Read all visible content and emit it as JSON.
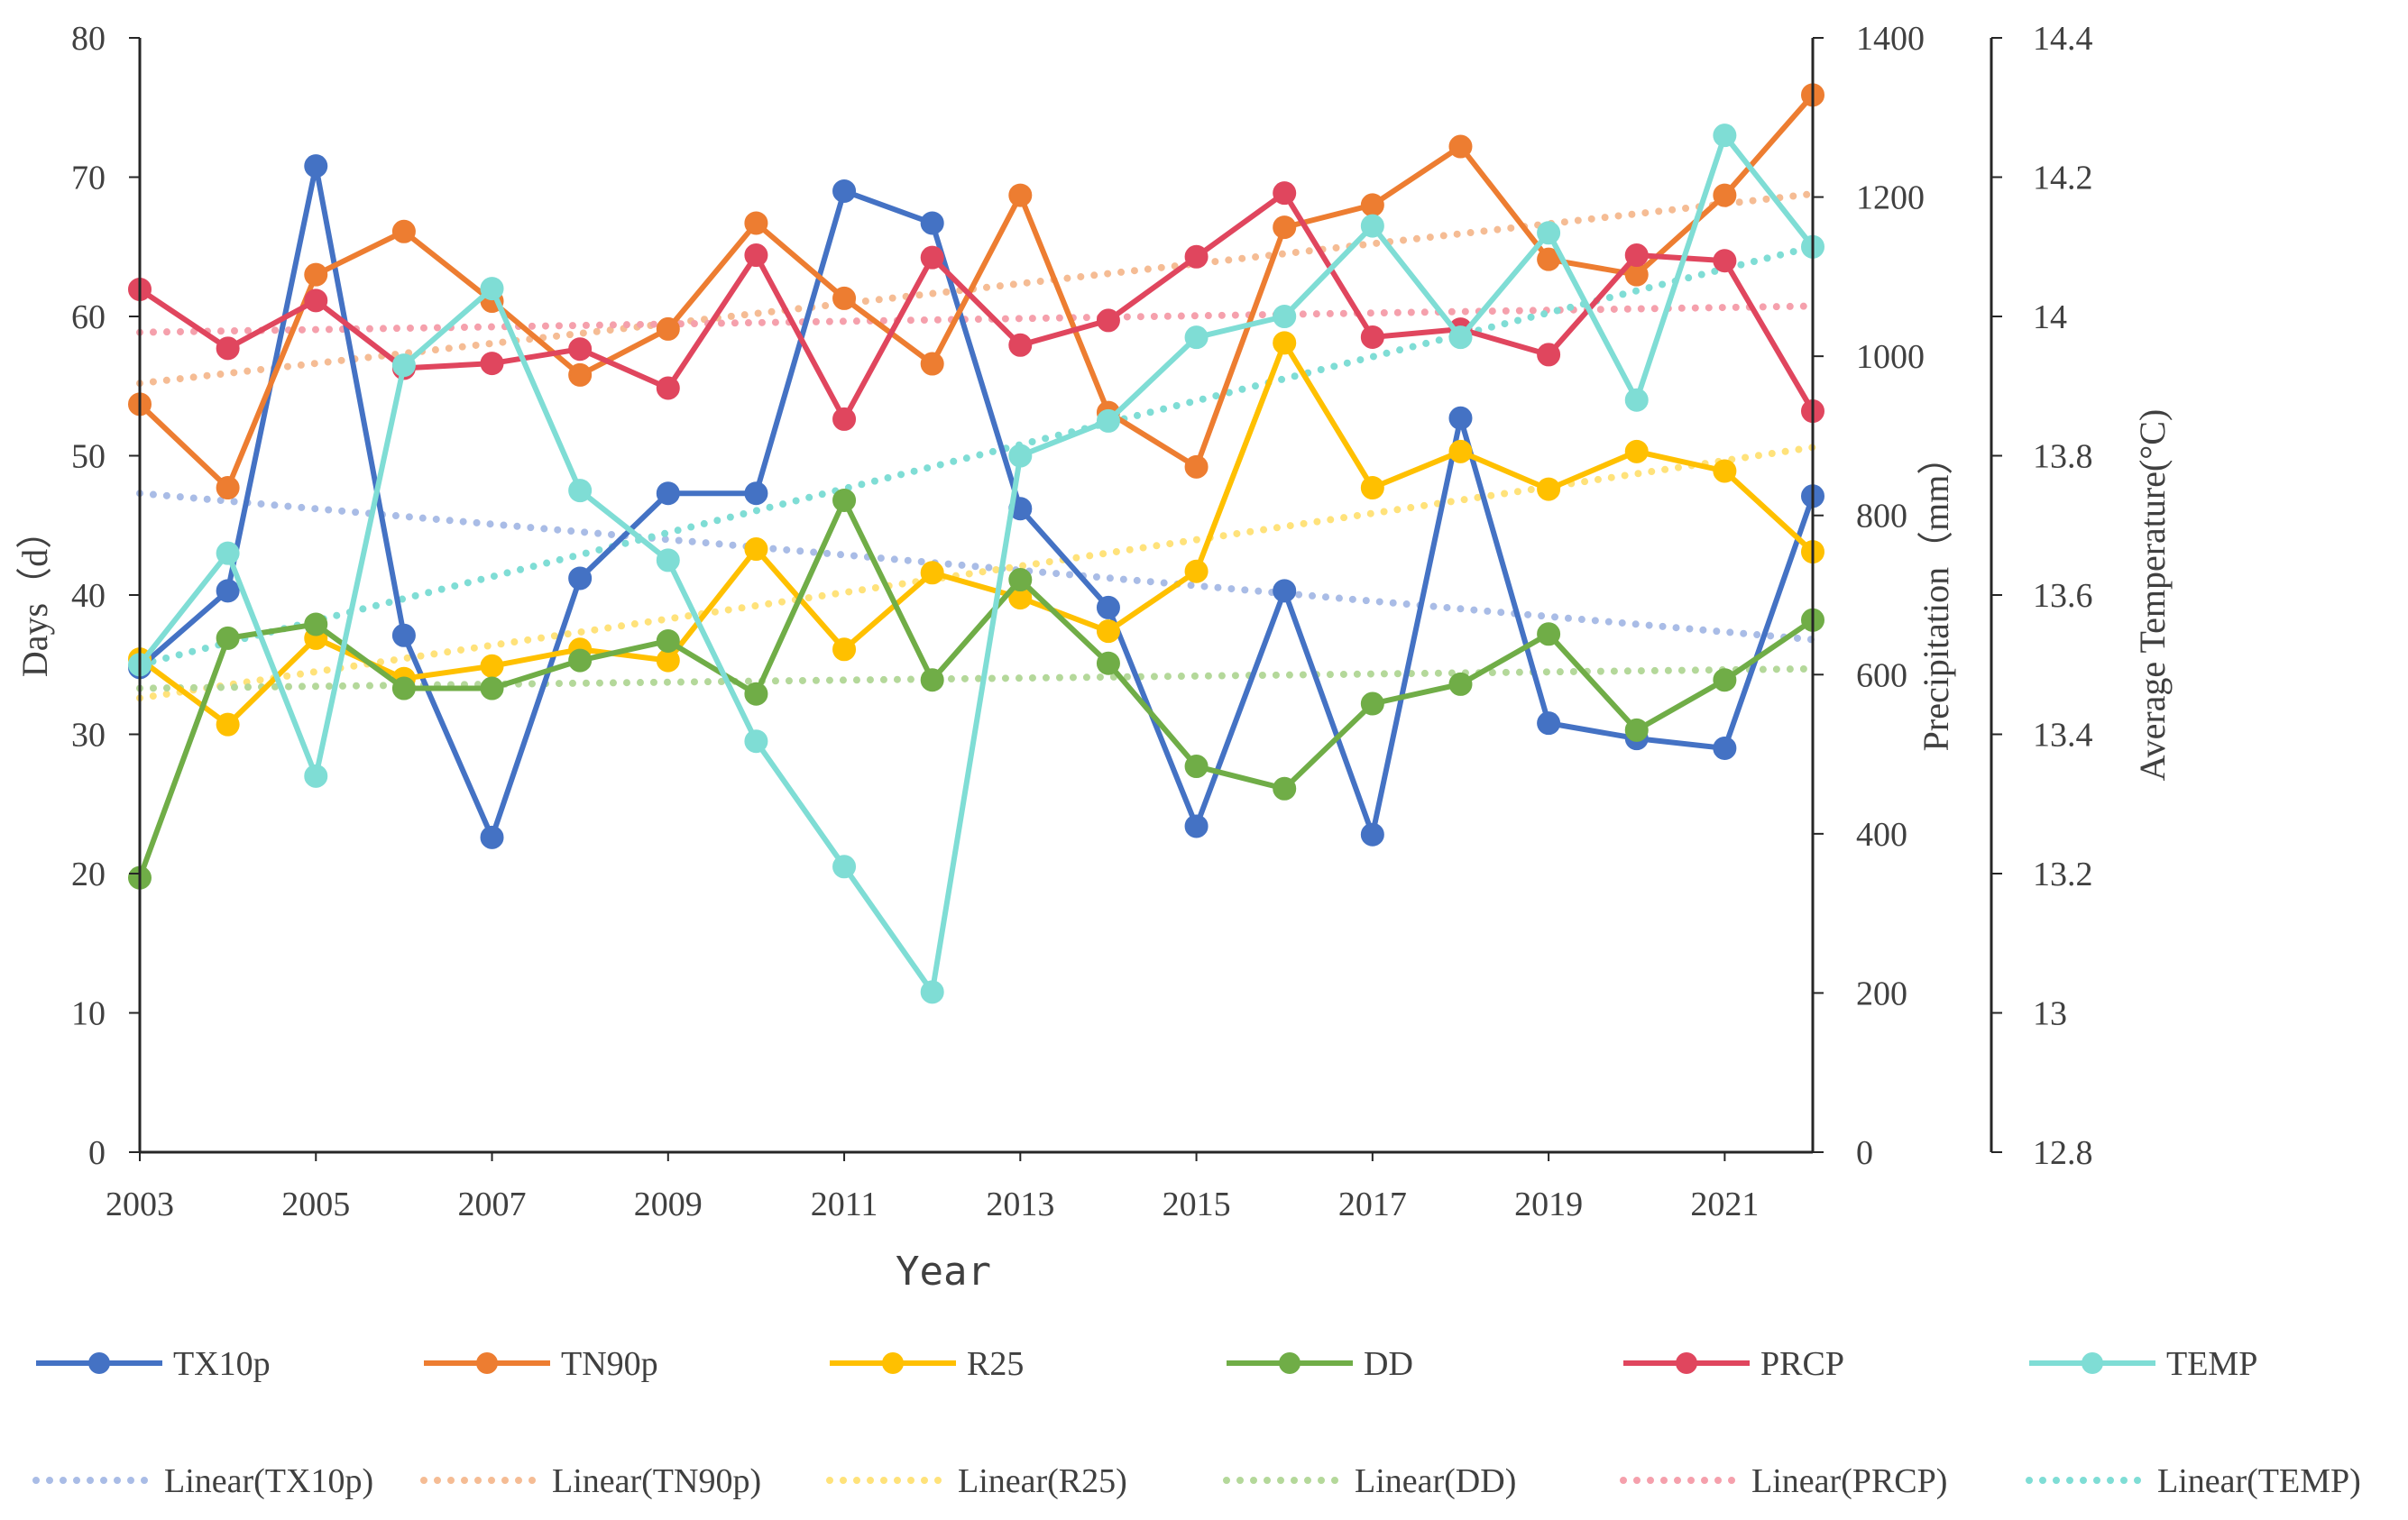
{
  "chart_data": {
    "type": "line",
    "xlabel": "Year",
    "y_axes": [
      {
        "id": "days",
        "label": "Days（d）",
        "range": [
          0,
          80
        ],
        "ticks": [
          "0",
          "10",
          "20",
          "30",
          "40",
          "50",
          "60",
          "70",
          "80"
        ]
      },
      {
        "id": "prcp",
        "label": "Precipitation（mm）",
        "range": [
          0,
          1400
        ],
        "ticks": [
          "0",
          "200",
          "400",
          "600",
          "800",
          "1000",
          "1200",
          "1400"
        ]
      },
      {
        "id": "temp",
        "label": "Average Temperature(°C)",
        "range": [
          12.8,
          14.4
        ],
        "ticks": [
          "12.8",
          "13",
          "13.2",
          "13.4",
          "13.6",
          "13.8",
          "14",
          "14.2",
          "14.4"
        ]
      }
    ],
    "x": [
      2003,
      2004,
      2005,
      2006,
      2007,
      2008,
      2009,
      2010,
      2011,
      2012,
      2013,
      2014,
      2015,
      2016,
      2017,
      2018,
      2019,
      2020,
      2021,
      2022
    ],
    "x_ticks": [
      "2003",
      "2005",
      "2007",
      "2009",
      "2011",
      "2013",
      "2015",
      "2017",
      "2019",
      "2021"
    ],
    "grid": false,
    "legend_position": "bottom",
    "series": [
      {
        "name": "TX10p",
        "axis": "days",
        "color": "#4472C4",
        "values": [
          34.8,
          40.3,
          70.8,
          37.1,
          22.6,
          41.2,
          47.3,
          47.3,
          69.0,
          66.7,
          46.2,
          39.1,
          23.4,
          40.3,
          22.8,
          52.7,
          30.8,
          29.7,
          29.0,
          47.1
        ]
      },
      {
        "name": "TN90p",
        "axis": "days",
        "color": "#ED7D31",
        "values": [
          53.7,
          47.7,
          63.0,
          66.1,
          61.1,
          55.8,
          59.1,
          66.7,
          61.3,
          56.6,
          68.7,
          53.1,
          49.2,
          66.4,
          68.0,
          72.2,
          64.1,
          63.0,
          68.7,
          75.9
        ]
      },
      {
        "name": "R25",
        "axis": "days",
        "color": "#FFC000",
        "values": [
          35.4,
          30.7,
          36.9,
          34.0,
          34.9,
          36.1,
          35.3,
          43.3,
          36.1,
          41.6,
          39.8,
          37.4,
          41.7,
          58.1,
          47.7,
          50.3,
          47.6,
          50.3,
          48.9,
          43.1
        ]
      },
      {
        "name": "DD",
        "axis": "days",
        "color": "#70AD47",
        "values": [
          19.7,
          36.9,
          37.9,
          33.3,
          33.3,
          35.3,
          36.7,
          32.9,
          46.8,
          33.9,
          41.1,
          35.1,
          27.7,
          26.1,
          32.2,
          33.6,
          37.2,
          30.3,
          33.9,
          38.2
        ]
      },
      {
        "name": "PRCP",
        "axis": "prcp",
        "color": "#E0465E",
        "values": [
          1084,
          1010,
          1070,
          985,
          991,
          1009,
          960,
          1127,
          921,
          1124,
          1014,
          1045,
          1125,
          1205,
          1024,
          1034,
          1002,
          1127,
          1120,
          931
        ]
      },
      {
        "name": "TEMP",
        "axis": "temp",
        "color": "#7FDDD5",
        "values": [
          13.5,
          13.66,
          13.34,
          13.93,
          14.04,
          13.75,
          13.65,
          13.39,
          13.21,
          13.03,
          13.8,
          13.85,
          13.97,
          14.0,
          14.13,
          13.97,
          14.12,
          13.88,
          14.26,
          14.1
        ]
      }
    ],
    "trendlines": [
      {
        "name": "Linear(TX10p)",
        "of": "TX10p",
        "color": "#A9BCE6",
        "start": 47.3,
        "end": 36.8
      },
      {
        "name": "Linear(TN90p)",
        "of": "TN90p",
        "color": "#F5BC94",
        "start": 55.2,
        "end": 68.8
      },
      {
        "name": "Linear(R25)",
        "of": "R25",
        "color": "#FFE27A",
        "start": 32.6,
        "end": 50.6
      },
      {
        "name": "Linear(DD)",
        "of": "DD",
        "color": "#B4D89A",
        "start": 33.3,
        "end": 34.7
      },
      {
        "name": "Linear(PRCP)",
        "of": "PRCP",
        "color": "#F5A0AC",
        "start": 1030,
        "end": 1063
      },
      {
        "name": "Linear(TEMP)",
        "of": "TEMP",
        "color": "#7FDDD5",
        "start": 13.5,
        "end": 14.1
      }
    ]
  }
}
